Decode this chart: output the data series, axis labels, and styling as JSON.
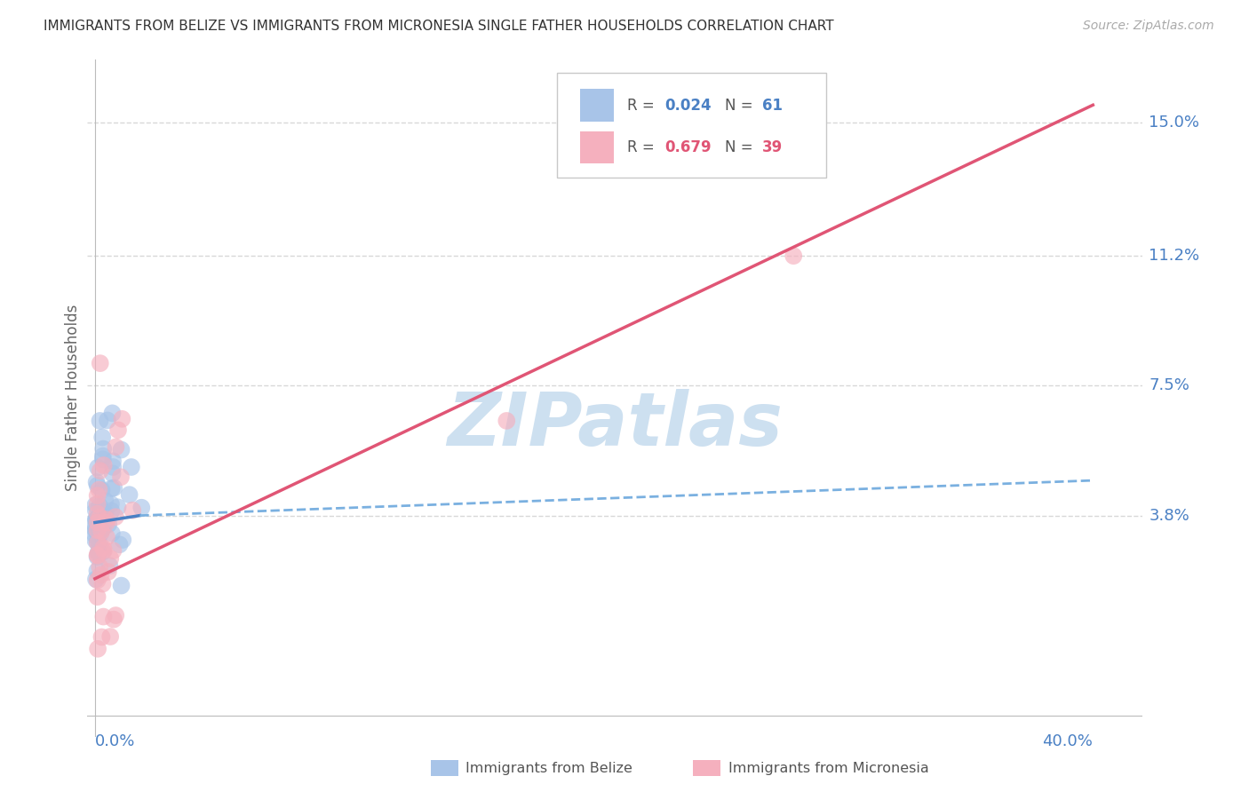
{
  "title": "IMMIGRANTS FROM BELIZE VS IMMIGRANTS FROM MICRONESIA SINGLE FATHER HOUSEHOLDS CORRELATION CHART",
  "source": "Source: ZipAtlas.com",
  "ylabel": "Single Father Households",
  "ytick_labels": [
    "15.0%",
    "11.2%",
    "7.5%",
    "3.8%"
  ],
  "ytick_values": [
    0.15,
    0.112,
    0.075,
    0.038
  ],
  "xtick_labels": [
    "0.0%",
    "40.0%"
  ],
  "xtick_values": [
    0.0,
    0.4
  ],
  "xlim": [
    -0.003,
    0.42
  ],
  "ylim": [
    -0.025,
    0.168
  ],
  "belize_color": "#a8c4e8",
  "micronesia_color": "#f5b0be",
  "belize_line_color": "#4a80c4",
  "belize_line_color2": "#7ab0e0",
  "micronesia_line_color": "#e05575",
  "belize_R": "0.024",
  "belize_N": "61",
  "micronesia_R": "0.679",
  "micronesia_N": "39",
  "watermark_text": "ZIPatlas",
  "watermark_color": "#cde0f0",
  "background_color": "#ffffff",
  "grid_color": "#d8d8d8",
  "title_color": "#333333",
  "axis_tick_color": "#4a80c4",
  "legend_edge_color": "#c8c8c8"
}
